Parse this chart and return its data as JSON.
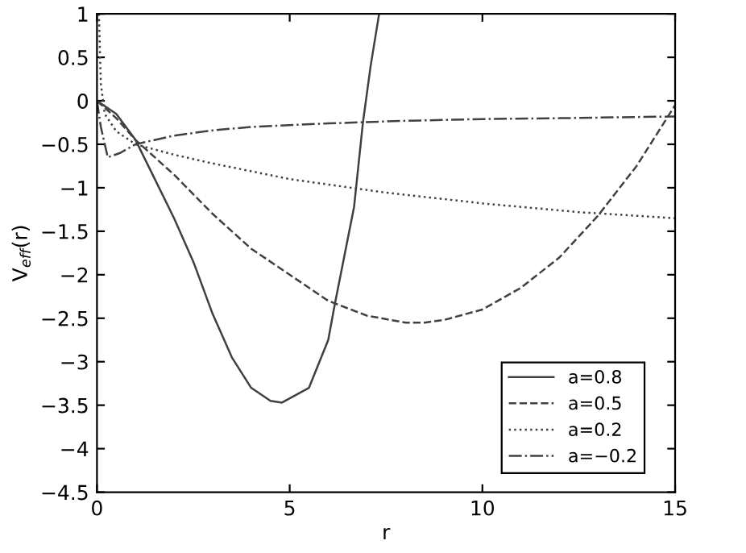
{
  "chart_data": {
    "type": "line",
    "xlabel": "r",
    "ylabel": "V$_{eff}$(r)",
    "xlim": [
      0,
      15
    ],
    "ylim": [
      -4.5,
      1
    ],
    "xticks": [
      0,
      5,
      10,
      15
    ],
    "yticks": [
      -4.5,
      -4,
      -3.5,
      -3,
      -2.5,
      -2,
      -1.5,
      -1,
      -0.5,
      0,
      0.5,
      1
    ],
    "grid": false,
    "legend": "bottom right",
    "marker": "none",
    "series": [
      {
        "name": "a=0.8",
        "color": "#404040",
        "line_style": "solid",
        "x": [
          0,
          0.5,
          1,
          1.5,
          2,
          2.5,
          3,
          3.5,
          4,
          4.5,
          4.8,
          5.5,
          6,
          6.17,
          6.67,
          6.9,
          7.1,
          7.32
        ],
        "values": [
          0,
          -0.15,
          -0.45,
          -0.9,
          -1.35,
          -1.85,
          -2.45,
          -2.95,
          -3.3,
          -3.45,
          -3.47,
          -3.3,
          -2.75,
          -2.34,
          -1.22,
          -0.25,
          0.4,
          1
        ]
      },
      {
        "name": "a=0.5",
        "color": "#404040",
        "line_style": "dashed",
        "x": [
          0,
          0.5,
          1,
          2,
          3,
          4,
          5,
          6,
          7,
          8,
          8.5,
          9,
          10,
          11,
          12,
          13,
          14,
          15
        ],
        "values": [
          0,
          -0.2,
          -0.45,
          -0.85,
          -1.3,
          -1.7,
          -2.0,
          -2.3,
          -2.47,
          -2.55,
          -2.55,
          -2.52,
          -2.4,
          -2.15,
          -1.8,
          -1.32,
          -0.75,
          -0.05
        ]
      },
      {
        "name": "a=0.2",
        "color": "#404040",
        "line_style": "dotted",
        "x": [
          0.05,
          0.1,
          0.2,
          0.5,
          1,
          2,
          3,
          5,
          7.4,
          10,
          12.5,
          15
        ],
        "values": [
          1,
          0.2,
          -0.15,
          -0.35,
          -0.5,
          -0.62,
          -0.72,
          -0.9,
          -1.05,
          -1.18,
          -1.28,
          -1.35
        ]
      },
      {
        "name": "a=−0.2",
        "color": "#404040",
        "line_style": "dashdot",
        "x": [
          0,
          0.1,
          0.28,
          0.6,
          1,
          2,
          3,
          4,
          6,
          8,
          10,
          12,
          15
        ],
        "values": [
          0,
          -0.3,
          -0.65,
          -0.6,
          -0.5,
          -0.4,
          -0.34,
          -0.3,
          -0.26,
          -0.23,
          -0.21,
          -0.2,
          -0.18
        ]
      }
    ]
  }
}
